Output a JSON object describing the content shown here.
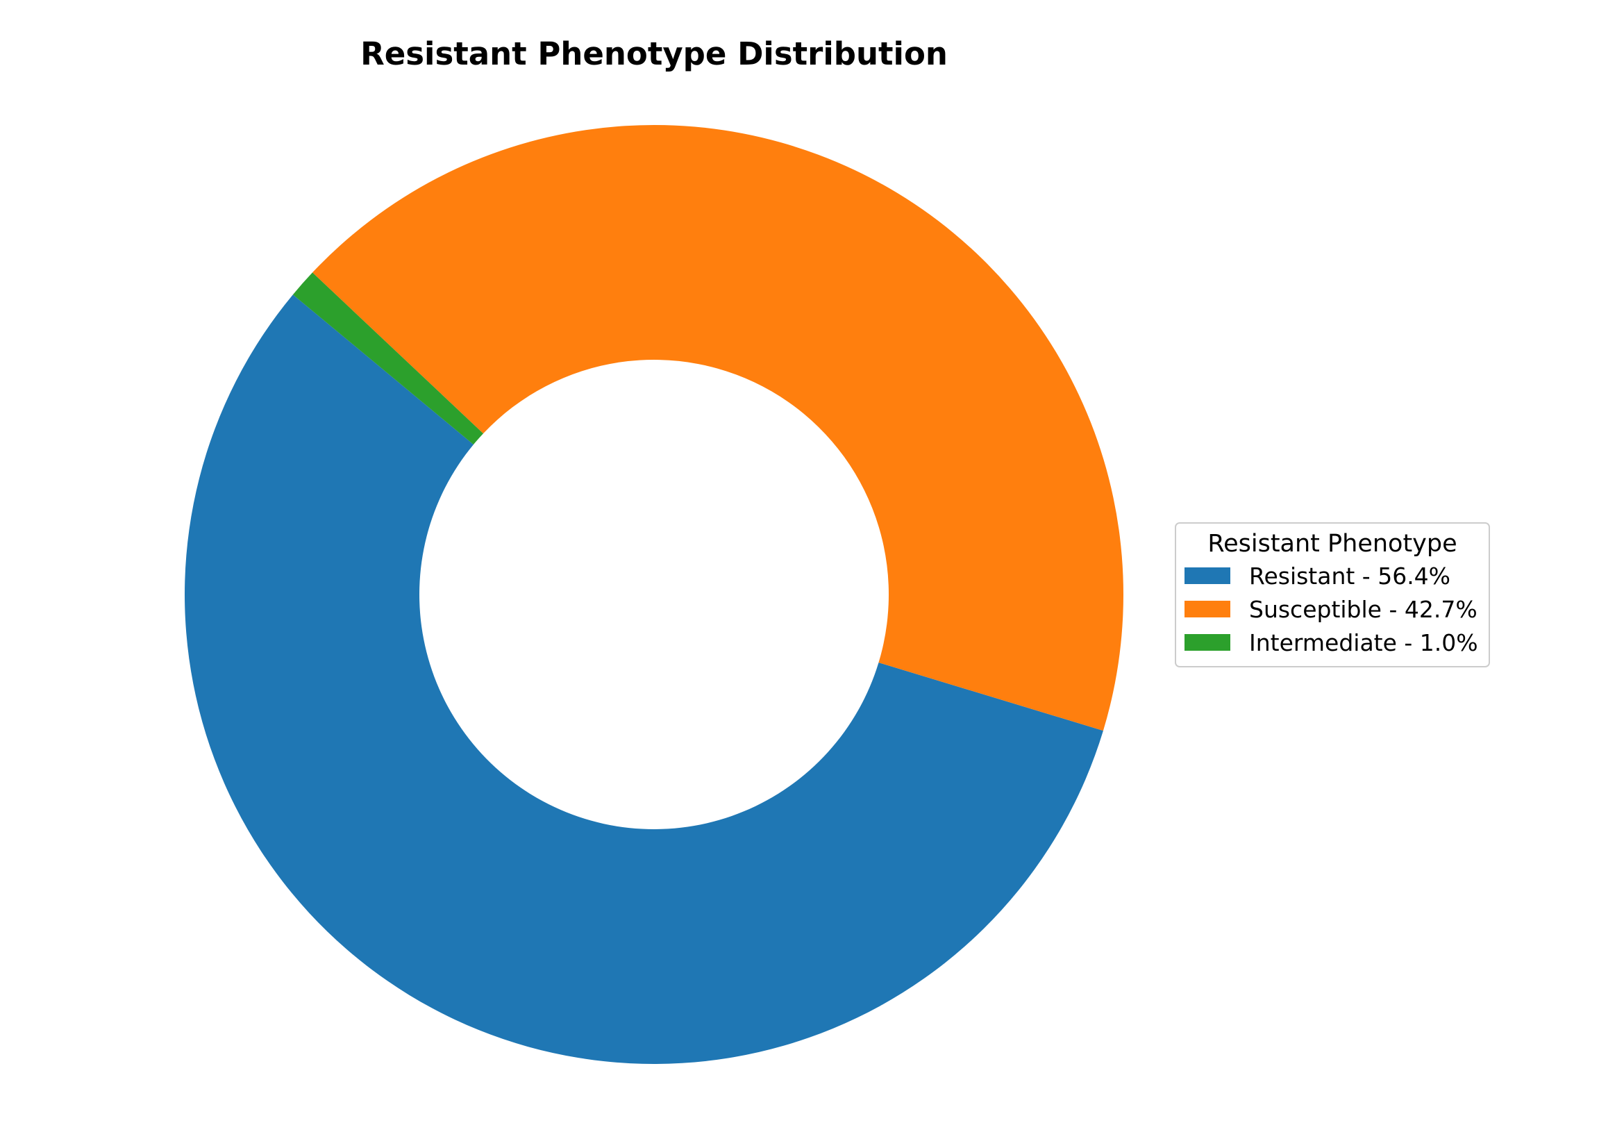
{
  "chart_data": {
    "type": "pie",
    "title": "Resistant Phenotype Distribution",
    "donut": true,
    "categories": [
      "Resistant",
      "Susceptible",
      "Intermediate"
    ],
    "values": [
      56.4,
      42.7,
      1.0
    ],
    "colors": [
      "#1f77b4",
      "#ff7f0e",
      "#2ca02c"
    ],
    "legend": {
      "title": "Resistant Phenotype",
      "placement": "right",
      "entries": [
        "Resistant - 56.4%",
        "Susceptible - 42.7%",
        "Intermediate - 1.0%"
      ]
    }
  }
}
